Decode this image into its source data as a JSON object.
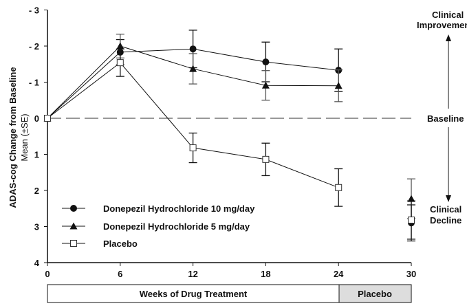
{
  "chart_data": {
    "type": "line",
    "xlabel": "Weeks of Drug Treatment",
    "ylabel": "ADAS-cog Change from Baseline",
    "ylabel_sub": "Mean (±SE)",
    "x": [
      0,
      6,
      12,
      18,
      24,
      30
    ],
    "x_ticks": [
      "0",
      "6",
      "12",
      "18",
      "24",
      "30"
    ],
    "y_ticks": [
      "- 3",
      "- 2",
      "- 1",
      "0",
      "1",
      "2",
      "3",
      "4"
    ],
    "ylim": [
      -3,
      4
    ],
    "y_inverted": true,
    "xlim": [
      0,
      30
    ],
    "placebo_phase_label": "Placebo",
    "baseline_label": "Baseline",
    "improvement_label": [
      "Clinical",
      "Improvement"
    ],
    "decline_label": [
      "Clinical",
      "Decline"
    ],
    "legend_position": "bottom-left",
    "series": [
      {
        "name": "Donepezil Hydrochloride 10 mg/day",
        "marker": "circle",
        "values": [
          0,
          -1.83,
          -1.92,
          -1.56,
          -1.33,
          2.9
        ],
        "se": [
          0,
          0.35,
          0.52,
          0.55,
          0.59,
          0.5
        ]
      },
      {
        "name": "Donepezil Hydrochloride 5 mg/day",
        "marker": "triangle",
        "values": [
          0,
          -2.0,
          -1.37,
          -0.91,
          -0.9,
          2.23
        ],
        "se": [
          0,
          0.33,
          0.42,
          0.41,
          0.44,
          0.55
        ]
      },
      {
        "name": "Placebo",
        "marker": "open-square",
        "values": [
          0,
          -1.54,
          0.82,
          1.14,
          1.92,
          2.82
        ],
        "se": [
          0,
          0.38,
          0.41,
          0.45,
          0.52,
          0.53
        ]
      }
    ]
  }
}
